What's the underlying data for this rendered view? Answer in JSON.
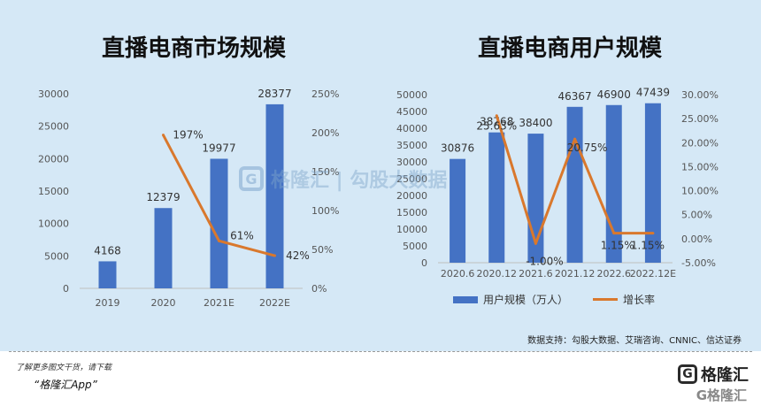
{
  "chart_data": [
    {
      "type": "bar",
      "title": "直播电商市场规模",
      "categories": [
        "2019",
        "2020",
        "2021E",
        "2022E"
      ],
      "series": [
        {
          "values": [
            4168,
            12379,
            19977,
            28377
          ],
          "color": "#4472c4"
        },
        {
          "values": [
            null,
            197,
            61,
            42
          ],
          "type": "line",
          "axis": "right",
          "color": "#d9782d",
          "labels": [
            "",
            "197%",
            "61%",
            "42%"
          ]
        }
      ],
      "ylim": [
        0,
        30000
      ],
      "yticks": [
        "0",
        "5000",
        "10000",
        "15000",
        "20000",
        "25000",
        "30000"
      ],
      "y2lim": [
        0,
        250
      ],
      "y2ticks": [
        "0%",
        "50%",
        "100%",
        "150%",
        "200%",
        "250%"
      ],
      "value_labels": [
        "4168",
        "12379",
        "19977",
        "28377"
      ],
      "grid": false
    },
    {
      "type": "bar",
      "title": "直播电商用户规模",
      "categories": [
        "2020.6",
        "2020.12",
        "2021.6",
        "2021.12",
        "2022.6",
        "2022.12E"
      ],
      "series": [
        {
          "name": "用户规模（万人）",
          "values": [
            30876,
            38768,
            38400,
            46367,
            46900,
            47439
          ],
          "color": "#4472c4"
        },
        {
          "name": "增长率",
          "type": "line",
          "axis": "right",
          "values": [
            null,
            25.63,
            -1.0,
            20.75,
            1.15,
            1.15
          ],
          "color": "#d9782d",
          "labels": [
            "",
            "25.63%",
            "-1.00%",
            "20.75%",
            "1.15%",
            "1.15%"
          ]
        }
      ],
      "ylim": [
        0,
        50000
      ],
      "yticks": [
        "0",
        "5000",
        "10000",
        "15000",
        "20000",
        "25000",
        "30000",
        "35000",
        "40000",
        "45000",
        "50000"
      ],
      "y2lim": [
        -5,
        30
      ],
      "y2ticks": [
        "-5.00%",
        "0.00%",
        "5.00%",
        "10.00%",
        "15.00%",
        "20.00%",
        "25.00%",
        "30.00%"
      ],
      "value_labels": [
        "30876",
        "38768",
        "38400",
        "46367",
        "46900",
        "47439"
      ],
      "legend": "bottom",
      "grid": false
    }
  ],
  "watermark": {
    "logo": "G",
    "text": "格隆汇 | 勾股大数据"
  },
  "source": "数据支持：勾股大数据、艾瑞咨询、CNNIC、信达证券",
  "footer": {
    "note": "了解更多图文干货，请下载",
    "app": "“格隆汇App”",
    "brand_logo": "G",
    "brand_text": "格隆汇",
    "brand_sub": "G格隆汇"
  }
}
